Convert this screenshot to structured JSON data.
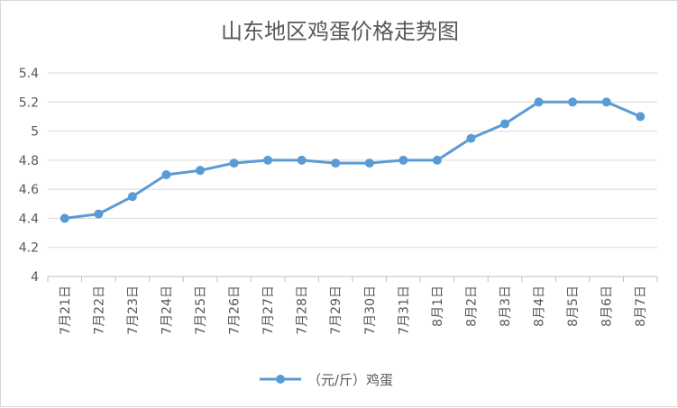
{
  "chart_data": {
    "type": "line",
    "title": "山东地区鸡蛋价格走势图",
    "categories": [
      "7月21日",
      "7月22日",
      "7月23日",
      "7月24日",
      "7月25日",
      "7月26日",
      "7月27日",
      "7月28日",
      "7月29日",
      "7月30日",
      "7月31日",
      "8月1日",
      "8月2日",
      "8月3日",
      "8月4日",
      "8月5日",
      "8月6日",
      "8月7日"
    ],
    "series": [
      {
        "name": "（元/斤）鸡蛋",
        "values": [
          4.4,
          4.43,
          4.55,
          4.7,
          4.73,
          4.78,
          4.8,
          4.8,
          4.78,
          4.78,
          4.8,
          4.8,
          4.95,
          5.05,
          5.2,
          5.2,
          5.2,
          5.1
        ],
        "color": "#5b9bd5"
      }
    ],
    "ylim": [
      4,
      5.4
    ],
    "yticks": [
      "4",
      "4.2",
      "4.4",
      "4.6",
      "4.8",
      "5",
      "5.2",
      "5.4"
    ],
    "grid": true,
    "legend_position": "bottom",
    "colors": {
      "gridline": "#d9d9d9",
      "axis": "#bfbfbf",
      "text": "#595959"
    }
  }
}
